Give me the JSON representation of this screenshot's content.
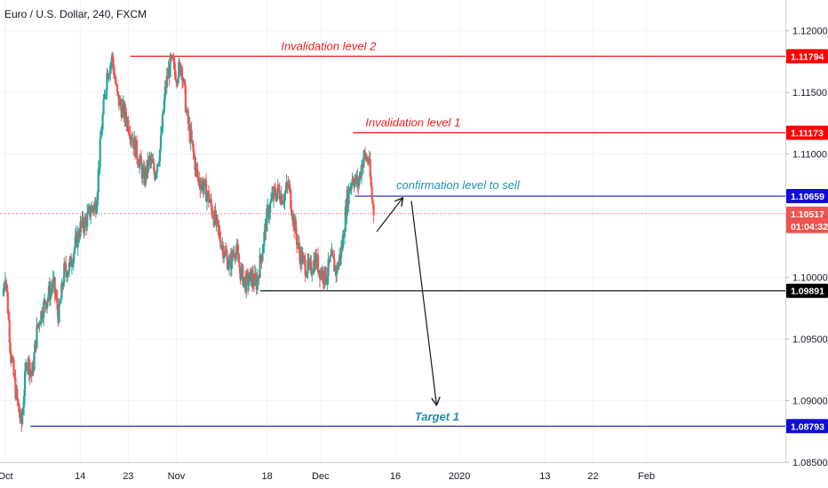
{
  "chart_data": {
    "type": "candlestick",
    "title": "Euro / U.S. Dollar, 240, FXCM",
    "y_axis_side": "right",
    "ylim": [
      1.085,
      1.1225
    ],
    "y_ticks": [
      1.085,
      1.09,
      1.095,
      1.1,
      1.105,
      1.11,
      1.115,
      1.12
    ],
    "y_tick_labels": [
      "1.08500",
      "1.09000",
      "1.09500",
      "1.10000",
      "1.10500",
      "1.11000",
      "1.11500",
      "1.12000"
    ],
    "x_range": [
      -1.0,
      146.0
    ],
    "x_ticks": [
      {
        "label": "Oct",
        "x": 0
      },
      {
        "label": "14",
        "x": 14
      },
      {
        "label": "23",
        "x": 23
      },
      {
        "label": "Nov",
        "x": 32
      },
      {
        "label": "18",
        "x": 49
      },
      {
        "label": "Dec",
        "x": 59
      },
      {
        "label": "16",
        "x": 73
      },
      {
        "label": "2020",
        "x": 85
      },
      {
        "label": "13",
        "x": 101
      },
      {
        "label": "22",
        "x": 110
      },
      {
        "label": "Feb",
        "x": 120
      }
    ],
    "grid": true,
    "colors": {
      "up": "#26a69a",
      "down": "#ef5350"
    },
    "candles_note": "approximate key closes of the 240-minute candle series (x in trading days from Oct 1)",
    "closes": [
      {
        "x": -0.5,
        "close": 1.0985
      },
      {
        "x": 0,
        "close": 1.1005
      },
      {
        "x": 1,
        "close": 1.094
      },
      {
        "x": 2,
        "close": 1.0905
      },
      {
        "x": 3,
        "close": 1.088
      },
      {
        "x": 4,
        "close": 1.0935
      },
      {
        "x": 5,
        "close": 1.092
      },
      {
        "x": 6,
        "close": 1.096
      },
      {
        "x": 7,
        "close": 1.0975
      },
      {
        "x": 8,
        "close": 1.0985
      },
      {
        "x": 9,
        "close": 1.0995
      },
      {
        "x": 10,
        "close": 1.0968
      },
      {
        "x": 11,
        "close": 1.1005
      },
      {
        "x": 12,
        "close": 1.1008
      },
      {
        "x": 13,
        "close": 1.1025
      },
      {
        "x": 14,
        "close": 1.104
      },
      {
        "x": 15,
        "close": 1.1045
      },
      {
        "x": 16,
        "close": 1.1055
      },
      {
        "x": 17,
        "close": 1.106
      },
      {
        "x": 18,
        "close": 1.112
      },
      {
        "x": 19,
        "close": 1.1165
      },
      {
        "x": 20,
        "close": 1.1178
      },
      {
        "x": 21,
        "close": 1.1145
      },
      {
        "x": 22,
        "close": 1.1135
      },
      {
        "x": 23,
        "close": 1.1125
      },
      {
        "x": 24,
        "close": 1.111
      },
      {
        "x": 25,
        "close": 1.1095
      },
      {
        "x": 26,
        "close": 1.108
      },
      {
        "x": 27,
        "close": 1.1095
      },
      {
        "x": 28,
        "close": 1.1085
      },
      {
        "x": 29,
        "close": 1.1105
      },
      {
        "x": 30,
        "close": 1.1155
      },
      {
        "x": 31,
        "close": 1.1175
      },
      {
        "x": 32,
        "close": 1.1165
      },
      {
        "x": 33,
        "close": 1.1172
      },
      {
        "x": 34,
        "close": 1.113
      },
      {
        "x": 35,
        "close": 1.1105
      },
      {
        "x": 36,
        "close": 1.108
      },
      {
        "x": 37,
        "close": 1.1075
      },
      {
        "x": 38,
        "close": 1.1065
      },
      {
        "x": 39,
        "close": 1.105
      },
      {
        "x": 40,
        "close": 1.1035
      },
      {
        "x": 41,
        "close": 1.102
      },
      {
        "x": 42,
        "close": 1.101
      },
      {
        "x": 43,
        "close": 1.1025
      },
      {
        "x": 44,
        "close": 1.1005
      },
      {
        "x": 45,
        "close": 1.0995
      },
      {
        "x": 46,
        "close": 1.1
      },
      {
        "x": 47,
        "close": 1.0995
      },
      {
        "x": 48,
        "close": 1.102
      },
      {
        "x": 49,
        "close": 1.105
      },
      {
        "x": 50,
        "close": 1.1065
      },
      {
        "x": 51,
        "close": 1.107
      },
      {
        "x": 52,
        "close": 1.1065
      },
      {
        "x": 53,
        "close": 1.1075
      },
      {
        "x": 54,
        "close": 1.1045
      },
      {
        "x": 55,
        "close": 1.102
      },
      {
        "x": 56,
        "close": 1.101
      },
      {
        "x": 57,
        "close": 1.1005
      },
      {
        "x": 58,
        "close": 1.1015
      },
      {
        "x": 59,
        "close": 1.1005
      },
      {
        "x": 60,
        "close": 1.1
      },
      {
        "x": 61,
        "close": 1.1015
      },
      {
        "x": 62,
        "close": 1.1005
      },
      {
        "x": 63,
        "close": 1.1025
      },
      {
        "x": 64,
        "close": 1.1065
      },
      {
        "x": 65,
        "close": 1.1082
      },
      {
        "x": 66,
        "close": 1.1075
      },
      {
        "x": 67,
        "close": 1.1098
      },
      {
        "x": 68,
        "close": 1.1095
      },
      {
        "x": 68.6,
        "close": 1.1065
      },
      {
        "x": 69,
        "close": 1.1052
      }
    ],
    "horizontal_levels": [
      {
        "name": "Invalidation level 2",
        "value": 1.11794,
        "label": "1.11794",
        "color": "#e8201b",
        "x_start": 23.4
      },
      {
        "name": "Invalidation level 1",
        "value": 1.11173,
        "label": "1.11173",
        "color": "#e8201b",
        "x_start": 65.1
      },
      {
        "name": "confirmation level to sell",
        "value": 1.10659,
        "label": "1.10659",
        "color": "#1a1aad",
        "x_start": 65.4
      },
      {
        "name": "",
        "value": 1.09891,
        "label": "1.09891",
        "color": "#131722",
        "x_start": 47.7
      },
      {
        "name": "Target 1",
        "value": 1.08793,
        "label": "1.08793",
        "color": "#1a1aad",
        "x_start": 4.7
      }
    ],
    "current_price": {
      "value": 1.10517,
      "label": "1.10517",
      "countdown": "01:04:32",
      "color": "#ef5350"
    },
    "annotations": [
      {
        "text": "Invalidation level 2",
        "x": 60.5,
        "y": 1.11845,
        "color": "#e8201b"
      },
      {
        "text": "Invalidation level 1",
        "x": 76.3,
        "y": 1.11225,
        "color": "#e8201b"
      },
      {
        "text": "confirmation level to sell",
        "x": 84.7,
        "y": 1.10718,
        "color": "#1e8fb0"
      },
      {
        "text": "Target 1",
        "x": 80.8,
        "y": 1.0884,
        "color": "#1e8fb0"
      }
    ],
    "arrows": [
      {
        "from": {
          "x": 69.5,
          "y": 1.1037
        },
        "to": {
          "x": 74.3,
          "y": 1.1064
        },
        "color": "#131722"
      },
      {
        "from": {
          "x": 76.0,
          "y": 1.1062
        },
        "to": {
          "x": 80.7,
          "y": 1.0897
        },
        "color": "#131722"
      }
    ]
  }
}
